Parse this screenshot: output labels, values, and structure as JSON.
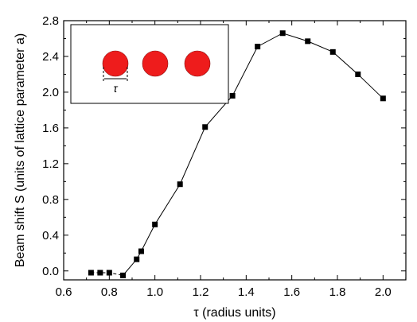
{
  "chart_data": {
    "type": "scatter",
    "line": true,
    "xlabel": "τ (radius units)",
    "ylabel": "Beam shift S (units of lattice parameter a)",
    "xlim": [
      0.6,
      2.1
    ],
    "ylim": [
      -0.1,
      2.8
    ],
    "xticks": [
      0.6,
      0.8,
      1.0,
      1.2,
      1.4,
      1.6,
      1.8,
      2.0
    ],
    "xtick_labels": [
      "0.6",
      "0.8",
      "1.0",
      "1.2",
      "1.4",
      "1.6",
      "1.8",
      "2.0"
    ],
    "yticks": [
      0.0,
      0.4,
      0.8,
      1.2,
      1.6,
      2.0,
      2.4,
      2.8
    ],
    "ytick_labels": [
      "0.0",
      "0.4",
      "0.8",
      "1.2",
      "1.6",
      "2.0",
      "2.4",
      "2.8"
    ],
    "series": [
      {
        "marker": "square",
        "color": "#000000",
        "x": [
          0.72,
          0.76,
          0.8,
          0.86,
          0.92,
          0.94,
          1.0,
          1.11,
          1.22,
          1.34,
          1.45,
          1.56,
          1.67,
          1.78,
          1.89,
          2.0
        ],
        "y": [
          -0.02,
          -0.02,
          -0.02,
          -0.05,
          0.13,
          0.22,
          0.52,
          0.97,
          1.61,
          1.96,
          2.51,
          2.66,
          2.57,
          2.45,
          2.2,
          1.93
        ]
      }
    ],
    "segments": [
      {
        "style": "dashed",
        "from_index": 0,
        "to_index": 3
      },
      {
        "style": "solid",
        "from_index": 3,
        "to_index": 15
      }
    ],
    "inset": {
      "description_label": "τ",
      "circle_color": "#ee1c1c",
      "circle_count": 3
    }
  }
}
